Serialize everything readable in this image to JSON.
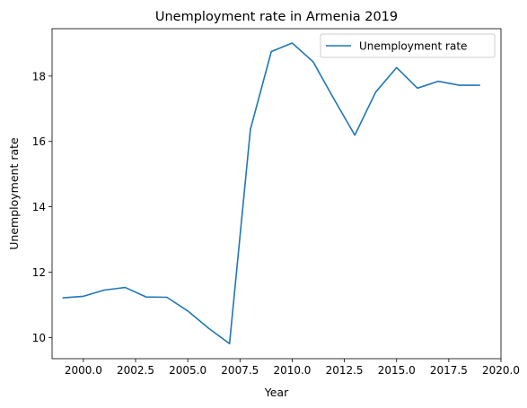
{
  "chart_data": {
    "type": "line",
    "title": "Unemployment rate in Armenia 2019",
    "xlabel": "Year",
    "ylabel": "Unemployment rate",
    "xlim": [
      1998.5,
      2020.0
    ],
    "ylim": [
      9.35,
      19.45
    ],
    "xticks": [
      2000.0,
      2002.5,
      2005.0,
      2007.5,
      2010.0,
      2012.5,
      2015.0,
      2017.5,
      2020.0
    ],
    "xtick_labels": [
      "2000.0",
      "2002.5",
      "2005.0",
      "2007.5",
      "2010.0",
      "2012.5",
      "2015.0",
      "2017.5",
      "2020.0"
    ],
    "yticks": [
      10,
      12,
      14,
      16,
      18
    ],
    "ytick_labels": [
      "10",
      "12",
      "14",
      "16",
      "18"
    ],
    "grid": false,
    "legend_position": "top-right",
    "series": [
      {
        "name": "Unemployment rate",
        "color": "#1f77b4",
        "x": [
          1999,
          2000,
          2001,
          2002,
          2003,
          2004,
          2005,
          2006,
          2007,
          2008,
          2009,
          2010,
          2011,
          2012,
          2013,
          2014,
          2015,
          2016,
          2017,
          2018,
          2019
        ],
        "y": [
          11.21,
          11.26,
          11.45,
          11.53,
          11.24,
          11.23,
          10.81,
          10.28,
          9.81,
          16.37,
          18.75,
          19.01,
          18.44,
          17.3,
          16.19,
          17.51,
          18.26,
          17.63,
          17.84,
          17.72,
          17.72
        ]
      }
    ]
  }
}
